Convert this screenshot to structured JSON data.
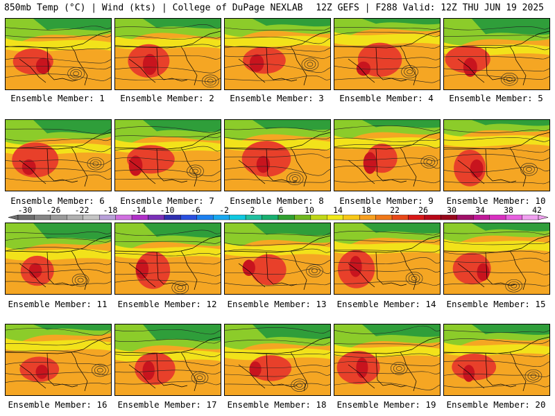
{
  "header": {
    "left": "850mb Temp (°C) | Wind (kts) | College of DuPage NEXLAB",
    "right": "12Z GEFS | F288 Valid: 12Z THU JUN 19 2025"
  },
  "members": [
    {
      "label": "Ensemble Member: 1"
    },
    {
      "label": "Ensemble Member: 2"
    },
    {
      "label": "Ensemble Member: 3"
    },
    {
      "label": "Ensemble Member: 4"
    },
    {
      "label": "Ensemble Member: 5"
    },
    {
      "label": "Ensemble Member: 6"
    },
    {
      "label": "Ensemble Member: 7"
    },
    {
      "label": "Ensemble Member: 8"
    },
    {
      "label": "Ensemble Member: 9"
    },
    {
      "label": "Ensemble Member: 10"
    },
    {
      "label": "Ensemble Member: 11"
    },
    {
      "label": "Ensemble Member: 12"
    },
    {
      "label": "Ensemble Member: 13"
    },
    {
      "label": "Ensemble Member: 14"
    },
    {
      "label": "Ensemble Member: 15"
    },
    {
      "label": "Ensemble Member: 16"
    },
    {
      "label": "Ensemble Member: 17"
    },
    {
      "label": "Ensemble Member: 18"
    },
    {
      "label": "Ensemble Member: 19"
    },
    {
      "label": "Ensemble Member: 20"
    }
  ],
  "colorbar": {
    "tick_labels": [
      "-30",
      "-26",
      "-22",
      "-18",
      "-14",
      "-10",
      "-6",
      "-2",
      "2",
      "6",
      "10",
      "14",
      "18",
      "22",
      "26",
      "30",
      "34",
      "38",
      "42"
    ],
    "colors": [
      "#6e6e6e",
      "#858585",
      "#9a9a9a",
      "#b0b0b0",
      "#c4c4c4",
      "#b8a0d8",
      "#d070e0",
      "#b030c8",
      "#7a30b8",
      "#3030b0",
      "#2a50e0",
      "#1c80f0",
      "#18a8f0",
      "#10c8e0",
      "#20c0a0",
      "#18b070",
      "#30a030",
      "#70b820",
      "#c0d818",
      "#f0e818",
      "#f8c818",
      "#f8a020",
      "#f07818",
      "#e84818",
      "#d81818",
      "#b80818",
      "#98081c",
      "#a01068",
      "#c01898",
      "#d830c0",
      "#e860e0",
      "#f0a0f0"
    ]
  }
}
